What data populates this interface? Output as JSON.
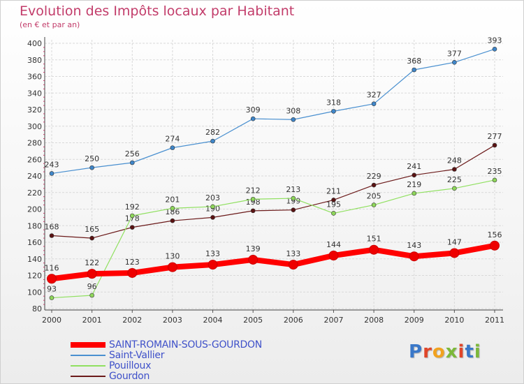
{
  "header": {
    "title": "Evolution des Impôts locaux par Habitant",
    "subtitle": "(en € et par an)"
  },
  "logo": {
    "text": "Proxiti",
    "letter_colors": [
      "#3a78c9",
      "#e0462a",
      "#f1a21f",
      "#7cb83a",
      "#e0462a",
      "#3a78c9",
      "#7cb83a"
    ]
  },
  "chart_data": {
    "type": "line",
    "x": [
      "2000",
      "2001",
      "2002",
      "2003",
      "2004",
      "2005",
      "2006",
      "2007",
      "2008",
      "2009",
      "2010",
      "2011"
    ],
    "ylim": [
      80,
      400
    ],
    "yticks": [
      80,
      100,
      120,
      140,
      160,
      180,
      200,
      220,
      240,
      260,
      280,
      300,
      320,
      340,
      360,
      380,
      400
    ],
    "grid": true,
    "legend_position": "bottom-left",
    "series": [
      {
        "name": "SAINT-ROMAIN-SOUS-GOURDON",
        "color": "#ff0000",
        "emphasis": true,
        "values": [
          116,
          122,
          123,
          130,
          133,
          139,
          133,
          144,
          151,
          143,
          147,
          156
        ]
      },
      {
        "name": "Saint-Vallier",
        "color": "#4a90d0",
        "values": [
          243,
          250,
          256,
          274,
          282,
          309,
          308,
          318,
          327,
          368,
          377,
          393
        ]
      },
      {
        "name": "Pouilloux",
        "color": "#90e060",
        "values": [
          93,
          96,
          192,
          201,
          203,
          212,
          213,
          195,
          205,
          219,
          225,
          235
        ]
      },
      {
        "name": "Gourdon",
        "color": "#6b1a1a",
        "values": [
          168,
          165,
          178,
          186,
          190,
          198,
          199,
          211,
          229,
          241,
          248,
          277
        ]
      }
    ]
  }
}
